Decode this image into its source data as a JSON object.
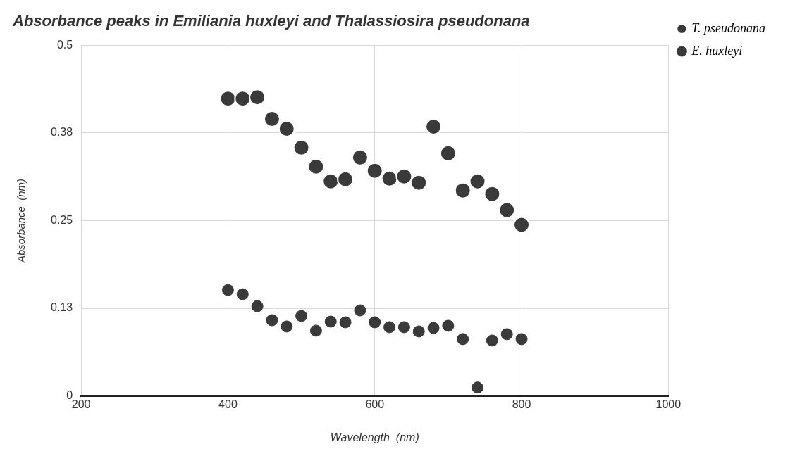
{
  "chart_data": {
    "type": "scatter",
    "title": "Absorbance peaks in Emiliania huxleyi and Thalassiosira pseudonana",
    "xlabel": "Wavelength  (nm)",
    "ylabel": "Absorbance  (nm)",
    "x": [
      400,
      420,
      440,
      460,
      480,
      500,
      520,
      540,
      560,
      580,
      600,
      620,
      640,
      660,
      680,
      700,
      720,
      740,
      760,
      780,
      800
    ],
    "series": [
      {
        "name": "T. pseudonana",
        "color": "#3a3a3a",
        "values": [
          0.424,
          0.424,
          0.426,
          0.395,
          0.381,
          0.354,
          0.327,
          0.306,
          0.309,
          0.34,
          0.321,
          0.31,
          0.313,
          0.304,
          0.384,
          0.346,
          0.293,
          0.306,
          0.288,
          0.265,
          0.244
        ]
      },
      {
        "name": "E. huxleyi",
        "color": "#3a3a3a",
        "values": [
          0.151,
          0.145,
          0.128,
          0.108,
          0.099,
          0.114,
          0.093,
          0.106,
          0.105,
          0.122,
          0.105,
          0.098,
          0.098,
          0.092,
          0.097,
          0.1,
          0.081,
          0.012,
          0.079,
          0.088,
          0.081
        ]
      }
    ],
    "xlim": [
      200,
      1000
    ],
    "xticks": [
      200,
      400,
      600,
      800,
      1000
    ],
    "ylim": [
      0,
      0.5
    ],
    "yticks": [
      0,
      {
        "value": 0.125,
        "label": "0.13"
      },
      0.25,
      {
        "value": 0.375,
        "label": "0.38"
      },
      0.5
    ],
    "grid": true,
    "legend": "top right",
    "marker": "circle"
  }
}
